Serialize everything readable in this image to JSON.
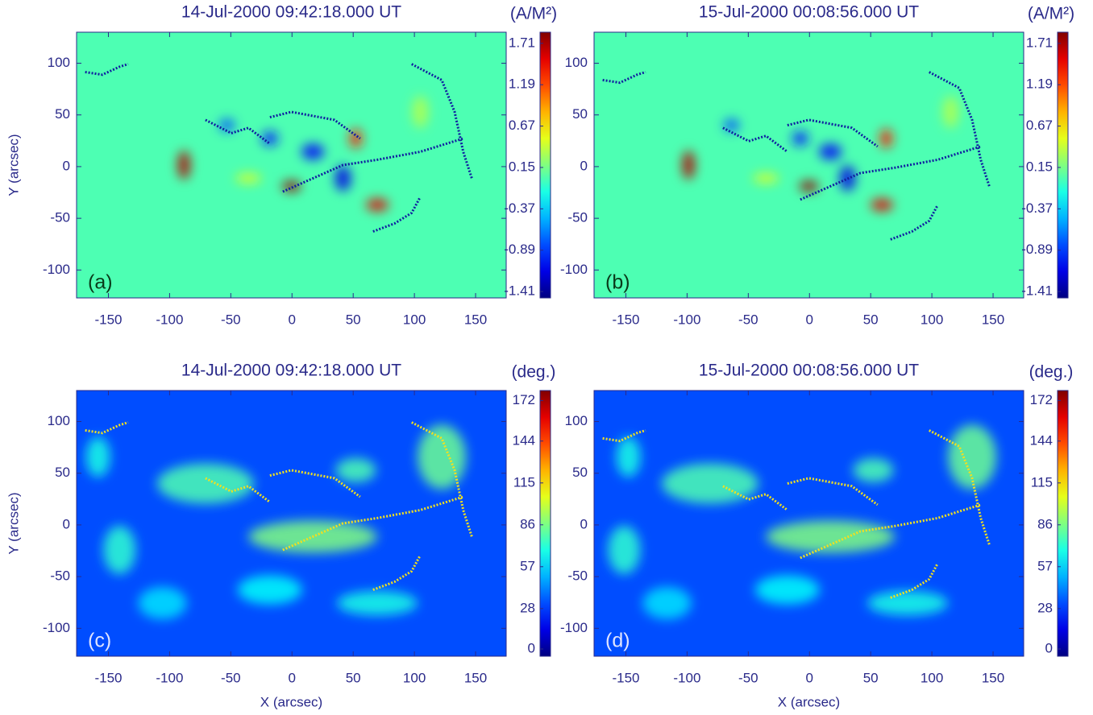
{
  "chart_data": [
    {
      "type": "heatmap",
      "title": "14-Jul-2000 09:42:18.000 UT",
      "ylabel": "Y (arcsec)",
      "panel_label": "(a)",
      "colormap": "jet",
      "xlim": [
        -176,
        175
      ],
      "ylim": [
        -127,
        130
      ],
      "xticks": [
        -150,
        -100,
        -50,
        0,
        50,
        100,
        150
      ],
      "yticks": [
        -100,
        -50,
        0,
        50,
        100
      ],
      "colorbar": {
        "label": "(A/M²)",
        "lim": [
          -1.49,
          1.85
        ],
        "ticks": [
          -1.41,
          -0.89,
          -0.37,
          0.15,
          0.67,
          1.19,
          1.71
        ]
      }
    },
    {
      "type": "heatmap",
      "title": "15-Jul-2000 00:08:56.000 UT",
      "panel_label": "(b)",
      "colormap": "jet",
      "xlim": [
        -176,
        175
      ],
      "ylim": [
        -127,
        130
      ],
      "xticks": [
        -150,
        -100,
        -50,
        0,
        50,
        100,
        150
      ],
      "yticks": [
        -100,
        -50,
        0,
        50,
        100
      ],
      "colorbar": {
        "label": "(A/M²)",
        "lim": [
          -1.49,
          1.85
        ],
        "ticks": [
          -1.41,
          -0.89,
          -0.37,
          0.15,
          0.67,
          1.19,
          1.71
        ]
      }
    },
    {
      "type": "heatmap",
      "title": "14-Jul-2000 09:42:18.000 UT",
      "xlabel": "X (arcsec)",
      "ylabel": "Y (arcsec)",
      "panel_label": "(c)",
      "colormap": "jet",
      "xlim": [
        -176,
        175
      ],
      "ylim": [
        -127,
        130
      ],
      "xticks": [
        -150,
        -100,
        -50,
        0,
        50,
        100,
        150
      ],
      "yticks": [
        -100,
        -50,
        0,
        50,
        100
      ],
      "colorbar": {
        "label": "(deg.)",
        "lim": [
          -5,
          179
        ],
        "ticks": [
          0,
          28,
          57,
          86,
          115,
          144,
          172
        ]
      }
    },
    {
      "type": "heatmap",
      "title": "15-Jul-2000 00:08:56.000 UT",
      "xlabel": "X (arcsec)",
      "panel_label": "(d)",
      "colormap": "jet",
      "xlim": [
        -176,
        175
      ],
      "ylim": [
        -127,
        130
      ],
      "xticks": [
        -150,
        -100,
        -50,
        0,
        50,
        100,
        150
      ],
      "yticks": [
        -100,
        -50,
        0,
        50,
        100
      ],
      "colorbar": {
        "label": "(deg.)",
        "lim": [
          -5,
          179
        ],
        "ticks": [
          0,
          28,
          57,
          86,
          115,
          144,
          172
        ]
      }
    }
  ]
}
